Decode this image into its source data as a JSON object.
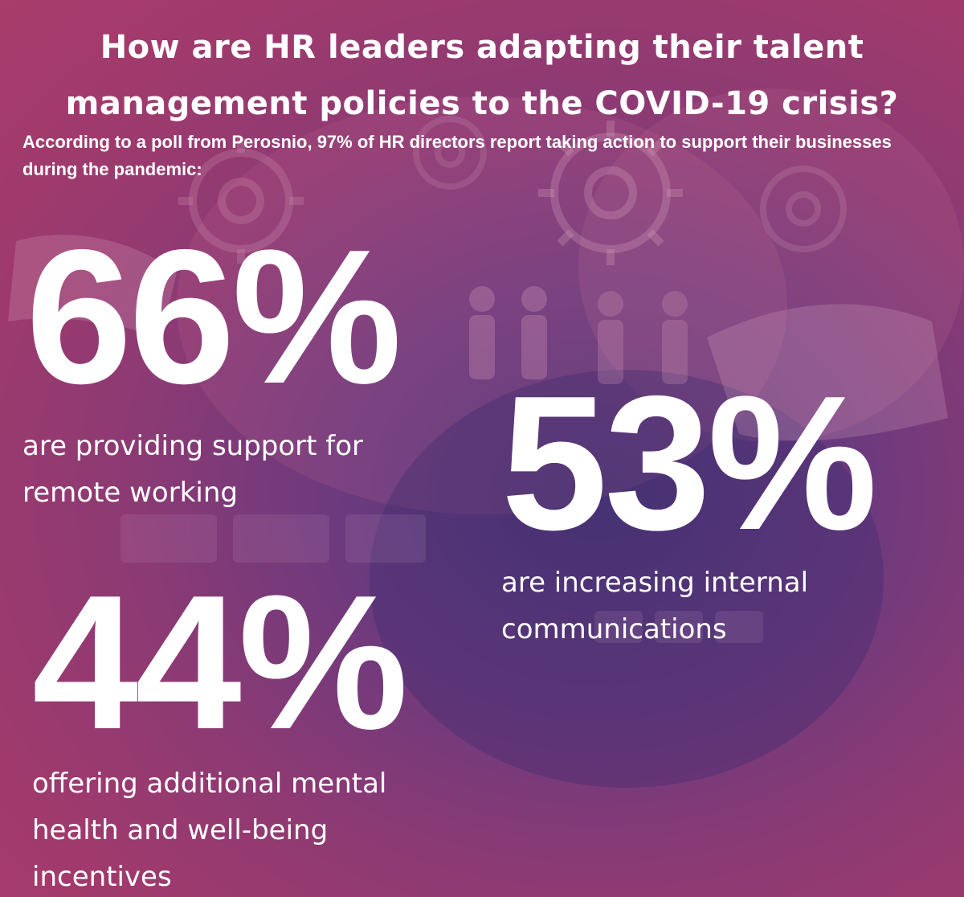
{
  "header": {
    "title_line1": "How are HR leaders adapting their talent",
    "title_line2": "management policies to the COVID-19 crisis?",
    "subtitle": "According to a poll from Perosnio, 97% of HR directors report taking action to support their businesses during the pandemic:"
  },
  "stats": [
    {
      "value": "66%",
      "line1": "are providing support for",
      "line2": "remote working"
    },
    {
      "value": "53%",
      "line1": "are increasing internal",
      "line2": "communications"
    },
    {
      "value": "44%",
      "line1": "offering additional mental",
      "line2": "health and well-being",
      "line3": "incentives"
    }
  ],
  "icons": [
    "gear-icon",
    "person-icon",
    "handshake-icon"
  ]
}
